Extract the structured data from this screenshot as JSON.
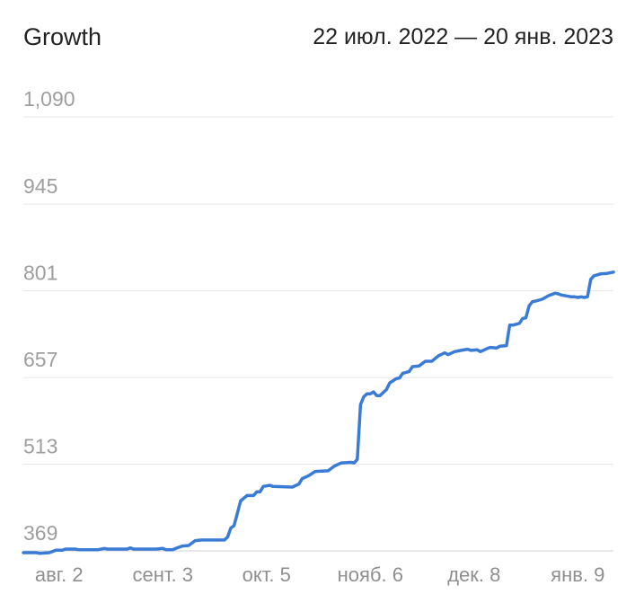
{
  "header": {
    "title": "Growth",
    "date_range": "22 июл. 2022 — 20 янв. 2023"
  },
  "colors": {
    "series": "#3a7bd5",
    "grid": "#e6e6e6",
    "tick_text": "#9e9e9e"
  },
  "chart_data": {
    "type": "line",
    "title": "Growth",
    "subtitle": "22 июл. 2022 — 20 янв. 2023",
    "xlabel": "",
    "ylabel": "",
    "grid": true,
    "legend": "none",
    "x_range": [
      "2022-07-22",
      "2023-01-20"
    ],
    "ylim": [
      369,
      1090
    ],
    "y_ticks": [
      369,
      513,
      657,
      801,
      945,
      1090
    ],
    "y_tick_labels": [
      "369",
      "513",
      "657",
      "801",
      "945",
      "1,090"
    ],
    "x_ticks": [
      {
        "date": "2022-08-02",
        "label": "авг. 2"
      },
      {
        "date": "2022-09-03",
        "label": "сент. 3"
      },
      {
        "date": "2022-10-05",
        "label": "окт. 5"
      },
      {
        "date": "2022-11-06",
        "label": "нояб. 6"
      },
      {
        "date": "2022-12-08",
        "label": "дек. 8"
      },
      {
        "date": "2023-01-09",
        "label": "янв. 9"
      }
    ],
    "series": [
      {
        "values": [
          [
            "2022-07-22",
            366
          ],
          [
            "2022-07-26",
            366
          ],
          [
            "2022-07-27",
            365
          ],
          [
            "2022-07-30",
            366
          ],
          [
            "2022-08-01",
            370
          ],
          [
            "2022-08-03",
            370
          ],
          [
            "2022-08-04",
            372
          ],
          [
            "2022-08-07",
            372
          ],
          [
            "2022-08-08",
            371
          ],
          [
            "2022-08-14",
            371
          ],
          [
            "2022-08-16",
            373
          ],
          [
            "2022-08-17",
            372
          ],
          [
            "2022-08-23",
            372
          ],
          [
            "2022-08-24",
            374
          ],
          [
            "2022-08-25",
            372
          ],
          [
            "2022-09-01",
            372
          ],
          [
            "2022-09-03",
            373
          ],
          [
            "2022-09-04",
            371
          ],
          [
            "2022-09-06",
            371
          ],
          [
            "2022-09-07",
            373
          ],
          [
            "2022-09-09",
            377
          ],
          [
            "2022-09-11",
            378
          ],
          [
            "2022-09-13",
            386
          ],
          [
            "2022-09-15",
            387
          ],
          [
            "2022-09-22",
            387
          ],
          [
            "2022-09-23",
            392
          ],
          [
            "2022-09-24",
            407
          ],
          [
            "2022-09-25",
            411
          ],
          [
            "2022-09-27",
            452
          ],
          [
            "2022-09-29",
            461
          ],
          [
            "2022-10-01",
            461
          ],
          [
            "2022-10-02",
            467
          ],
          [
            "2022-10-03",
            467
          ],
          [
            "2022-10-04",
            476
          ],
          [
            "2022-10-06",
            478
          ],
          [
            "2022-10-07",
            476
          ],
          [
            "2022-10-13",
            475
          ],
          [
            "2022-10-15",
            480
          ],
          [
            "2022-10-16",
            489
          ],
          [
            "2022-10-18",
            494
          ],
          [
            "2022-10-20",
            501
          ],
          [
            "2022-10-24",
            502
          ],
          [
            "2022-10-26",
            510
          ],
          [
            "2022-10-28",
            515
          ],
          [
            "2022-10-31",
            516
          ],
          [
            "2022-11-01",
            515
          ],
          [
            "2022-11-02",
            521
          ],
          [
            "2022-11-03",
            612
          ],
          [
            "2022-11-04",
            625
          ],
          [
            "2022-11-05",
            630
          ],
          [
            "2022-11-06",
            630
          ],
          [
            "2022-11-07",
            633
          ],
          [
            "2022-11-08",
            627
          ],
          [
            "2022-11-09",
            627
          ],
          [
            "2022-11-11",
            637
          ],
          [
            "2022-11-12",
            648
          ],
          [
            "2022-11-14",
            655
          ],
          [
            "2022-11-15",
            656
          ],
          [
            "2022-11-16",
            664
          ],
          [
            "2022-11-18",
            667
          ],
          [
            "2022-11-19",
            675
          ],
          [
            "2022-11-21",
            676
          ],
          [
            "2022-11-23",
            684
          ],
          [
            "2022-11-25",
            684
          ],
          [
            "2022-11-27",
            693
          ],
          [
            "2022-11-29",
            698
          ],
          [
            "2022-11-30",
            695
          ],
          [
            "2022-12-02",
            700
          ],
          [
            "2022-12-04",
            702
          ],
          [
            "2022-12-06",
            704
          ],
          [
            "2022-12-07",
            702
          ],
          [
            "2022-12-09",
            703
          ],
          [
            "2022-12-10",
            700
          ],
          [
            "2022-12-12",
            705
          ],
          [
            "2022-12-13",
            707
          ],
          [
            "2022-12-15",
            706
          ],
          [
            "2022-12-16",
            709
          ],
          [
            "2022-12-18",
            710
          ],
          [
            "2022-12-19",
            744
          ],
          [
            "2022-12-20",
            744
          ],
          [
            "2022-12-22",
            747
          ],
          [
            "2022-12-23",
            755
          ],
          [
            "2022-12-24",
            756
          ],
          [
            "2022-12-25",
            776
          ],
          [
            "2022-12-26",
            783
          ],
          [
            "2022-12-27",
            784
          ],
          [
            "2022-12-29",
            787
          ],
          [
            "2022-12-31",
            793
          ],
          [
            "2023-01-02",
            797
          ],
          [
            "2023-01-03",
            796
          ],
          [
            "2023-01-04",
            794
          ],
          [
            "2023-01-07",
            791
          ],
          [
            "2023-01-08",
            791
          ],
          [
            "2023-01-09",
            790
          ],
          [
            "2023-01-10",
            791
          ],
          [
            "2023-01-11",
            790
          ],
          [
            "2023-01-12",
            791
          ],
          [
            "2023-01-13",
            820
          ],
          [
            "2023-01-14",
            826
          ],
          [
            "2023-01-16",
            829
          ],
          [
            "2023-01-18",
            830
          ],
          [
            "2023-01-20",
            832
          ]
        ]
      }
    ]
  }
}
